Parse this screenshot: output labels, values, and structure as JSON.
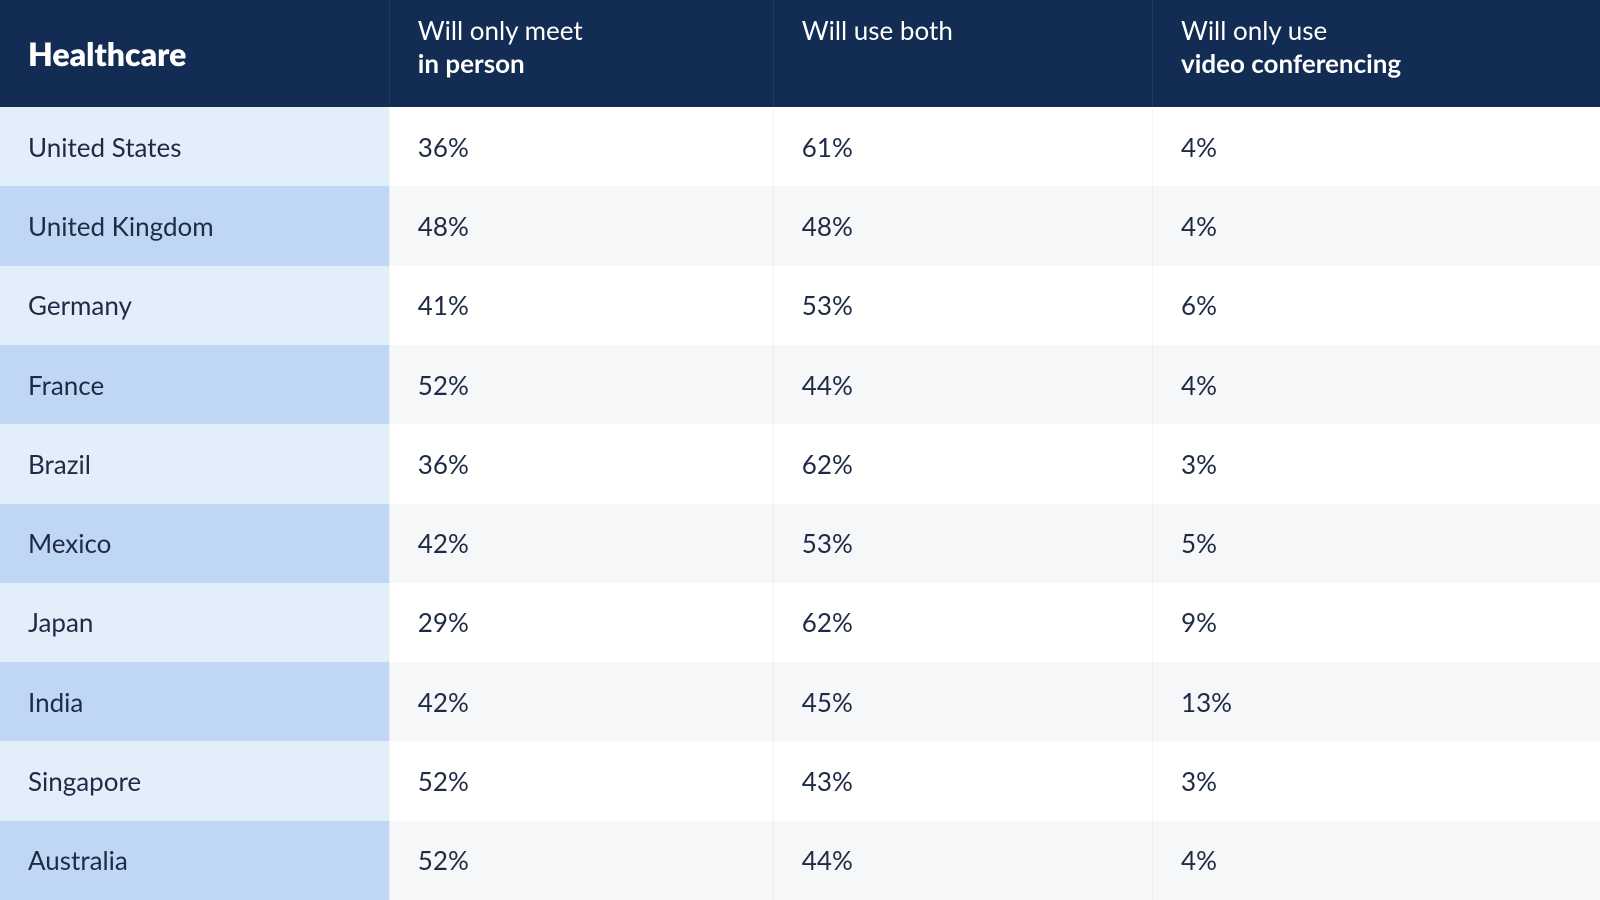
{
  "table": {
    "type": "table",
    "colors": {
      "header_bg": "#132c53",
      "header_text": "#ffffff",
      "row_label_bg_light": "#e3eefb",
      "row_label_bg_dark": "#bfd7f5",
      "row_data_bg_light": "#ffffff",
      "row_data_bg_dark": "#f5f7f9",
      "text": "#1f2b44",
      "grid": "rgba(0,0,0,0.04)"
    },
    "typography": {
      "header_title_fontsize": 32,
      "header_title_fontweight": 800,
      "header_cell_fontsize": 26,
      "header_cell_fontweight_normal": 400,
      "header_cell_fontweight_bold": 700,
      "body_label_fontsize": 26,
      "body_label_fontweight": 700,
      "body_cell_fontsize": 26,
      "body_cell_fontweight": 400,
      "font_family": "Lato / Segoe UI / Helvetica Neue"
    },
    "layout": {
      "col_widths_pct": [
        24.3,
        24.0,
        23.7,
        28.0
      ],
      "header_row_flex": 1.35,
      "body_row_flex": 1,
      "cell_padding_x": 28
    },
    "header": {
      "title": "Healthcare",
      "columns": [
        {
          "line1": "Will only meet",
          "line2_bold": "in person"
        },
        {
          "line1": "Will use both",
          "line2_bold": ""
        },
        {
          "line1": "Will only use",
          "line2_bold": "video conferencing"
        }
      ]
    },
    "rows": [
      {
        "label": "United States",
        "values": [
          "36%",
          "61%",
          "4%"
        ]
      },
      {
        "label": "United Kingdom",
        "values": [
          "48%",
          "48%",
          "4%"
        ]
      },
      {
        "label": "Germany",
        "values": [
          "41%",
          "53%",
          "6%"
        ]
      },
      {
        "label": "France",
        "values": [
          "52%",
          "44%",
          "4%"
        ]
      },
      {
        "label": "Brazil",
        "values": [
          "36%",
          "62%",
          "3%"
        ]
      },
      {
        "label": "Mexico",
        "values": [
          "42%",
          "53%",
          "5%"
        ]
      },
      {
        "label": "Japan",
        "values": [
          "29%",
          "62%",
          "9%"
        ]
      },
      {
        "label": "India",
        "values": [
          "42%",
          "45%",
          "13%"
        ]
      },
      {
        "label": "Singapore",
        "values": [
          "52%",
          "43%",
          "3%"
        ]
      },
      {
        "label": "Australia",
        "values": [
          "52%",
          "44%",
          "4%"
        ]
      }
    ]
  }
}
